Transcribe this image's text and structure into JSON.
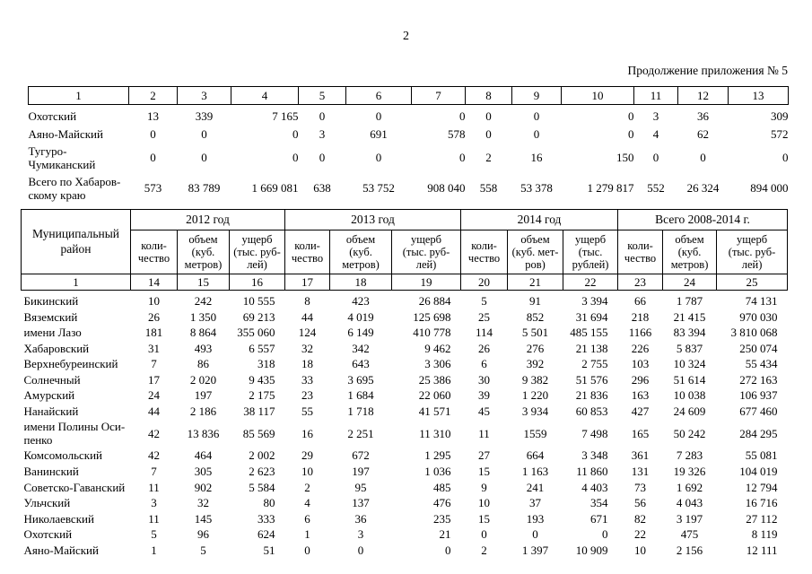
{
  "page": {
    "number": "2",
    "continuation": "Продолжение приложения № 5"
  },
  "table1": {
    "column_numbers": [
      "1",
      "2",
      "3",
      "4",
      "5",
      "6",
      "7",
      "8",
      "9",
      "10",
      "11",
      "12",
      "13"
    ],
    "rows": [
      {
        "name": "Охотский",
        "values": [
          "13",
          "339",
          "7 165",
          "0",
          "0",
          "0",
          "0",
          "0",
          "0",
          "3",
          "36",
          "309"
        ]
      },
      {
        "name": "Аяно-Майский",
        "values": [
          "0",
          "0",
          "0",
          "3",
          "691",
          "578",
          "0",
          "0",
          "0",
          "4",
          "62",
          "572"
        ]
      },
      {
        "name": "Тугуро-\nЧумиканский",
        "values": [
          "0",
          "0",
          "0",
          "0",
          "0",
          "0",
          "2",
          "16",
          "150",
          "0",
          "0",
          "0"
        ]
      },
      {
        "name": "Всего по Хабаров-\nскому краю",
        "values": [
          "573",
          "83 789",
          "1 669 081",
          "638",
          "53 752",
          "908 040",
          "558",
          "53 378",
          "1 279 817",
          "552",
          "26 324",
          "894 000"
        ]
      }
    ]
  },
  "table2": {
    "district_header": "Муниципальный\nрайон",
    "groups": [
      {
        "label": "2012 год",
        "subcols": [
          "коли-\nчество",
          "объем\n(куб.\nметров)",
          "ущерб\n(тыс. руб-\nлей)"
        ]
      },
      {
        "label": "2013 год",
        "subcols": [
          "коли-\nчество",
          "объем\n(куб.\nметров)",
          "ущерб\n(тыс. руб-\nлей)"
        ]
      },
      {
        "label": "2014 год",
        "subcols": [
          "коли-\nчество",
          "объем\n(куб. мет-\nров)",
          "ущерб\n(тыс.\nрублей)"
        ]
      },
      {
        "label": "Всего 2008-2014 г.",
        "subcols": [
          "коли-\nчество",
          "объем\n(куб.\nметров)",
          "ущерб\n(тыс. руб-\nлей)"
        ]
      }
    ],
    "column_numbers": [
      "1",
      "14",
      "15",
      "16",
      "17",
      "18",
      "19",
      "20",
      "21",
      "22",
      "23",
      "24",
      "25"
    ],
    "rows": [
      {
        "name": "Бикинский",
        "values": [
          "10",
          "242",
          "10 555",
          "8",
          "423",
          "26 884",
          "5",
          "91",
          "3 394",
          "66",
          "1 787",
          "74 131"
        ]
      },
      {
        "name": "Вяземский",
        "values": [
          "26",
          "1 350",
          "69 213",
          "44",
          "4 019",
          "125 698",
          "25",
          "852",
          "31 694",
          "218",
          "21 415",
          "970 030"
        ]
      },
      {
        "name": "имени Лазо",
        "values": [
          "181",
          "8 864",
          "355 060",
          "124",
          "6 149",
          "410 778",
          "114",
          "5 501",
          "485 155",
          "1166",
          "83 394",
          "3 810 068"
        ]
      },
      {
        "name": "Хабаровский",
        "values": [
          "31",
          "493",
          "6 557",
          "32",
          "342",
          "9 462",
          "26",
          "276",
          "21 138",
          "226",
          "5 837",
          "250 074"
        ]
      },
      {
        "name": "Верхнебуреинский",
        "values": [
          "7",
          "86",
          "318",
          "18",
          "643",
          "3 306",
          "6",
          "392",
          "2 755",
          "103",
          "10 324",
          "55 434"
        ]
      },
      {
        "name": "Солнечный",
        "values": [
          "17",
          "2 020",
          "9 435",
          "33",
          "3 695",
          "25 386",
          "30",
          "9 382",
          "51 576",
          "296",
          "51 614",
          "272 163"
        ]
      },
      {
        "name": "Амурский",
        "values": [
          "24",
          "197",
          "2 175",
          "23",
          "1 684",
          "22 060",
          "39",
          "1 220",
          "21 836",
          "163",
          "10 038",
          "106 937"
        ]
      },
      {
        "name": "Нанайский",
        "values": [
          "44",
          "2 186",
          "38 117",
          "55",
          "1 718",
          "41 571",
          "45",
          "3 934",
          "60 853",
          "427",
          "24 609",
          "677 460"
        ]
      },
      {
        "name": "имени Полины Оси-\nпенко",
        "values": [
          "42",
          "13 836",
          "85 569",
          "16",
          "2 251",
          "11 310",
          "11",
          "1559",
          "7 498",
          "165",
          "50 242",
          "284 295"
        ]
      },
      {
        "name": "Комсомольский",
        "values": [
          "42",
          "464",
          "2 002",
          "29",
          "672",
          "1 295",
          "27",
          "664",
          "3 348",
          "361",
          "7 283",
          "55 081"
        ]
      },
      {
        "name": "Ванинский",
        "values": [
          "7",
          "305",
          "2 623",
          "10",
          "197",
          "1 036",
          "15",
          "1 163",
          "11 860",
          "131",
          "19 326",
          "104 019"
        ]
      },
      {
        "name": "Советско-Гаванский",
        "values": [
          "11",
          "902",
          "5 584",
          "2",
          "95",
          "485",
          "9",
          "241",
          "4 403",
          "73",
          "1 692",
          "12 794"
        ]
      },
      {
        "name": "Ульчский",
        "values": [
          "3",
          "32",
          "80",
          "4",
          "137",
          "476",
          "10",
          "37",
          "354",
          "56",
          "4 043",
          "16 716"
        ]
      },
      {
        "name": "Николаевский",
        "values": [
          "11",
          "145",
          "333",
          "6",
          "36",
          "235",
          "15",
          "193",
          "671",
          "82",
          "3 197",
          "27 112"
        ]
      },
      {
        "name": "Охотский",
        "values": [
          "5",
          "96",
          "624",
          "1",
          "3",
          "21",
          "0",
          "0",
          "0",
          "22",
          "475",
          "8 119"
        ]
      },
      {
        "name": "Аяно-Майский",
        "values": [
          "1",
          "5",
          "51",
          "0",
          "0",
          "0",
          "2",
          "1 397",
          "10 909",
          "10",
          "2 156",
          "12 111"
        ]
      }
    ]
  }
}
